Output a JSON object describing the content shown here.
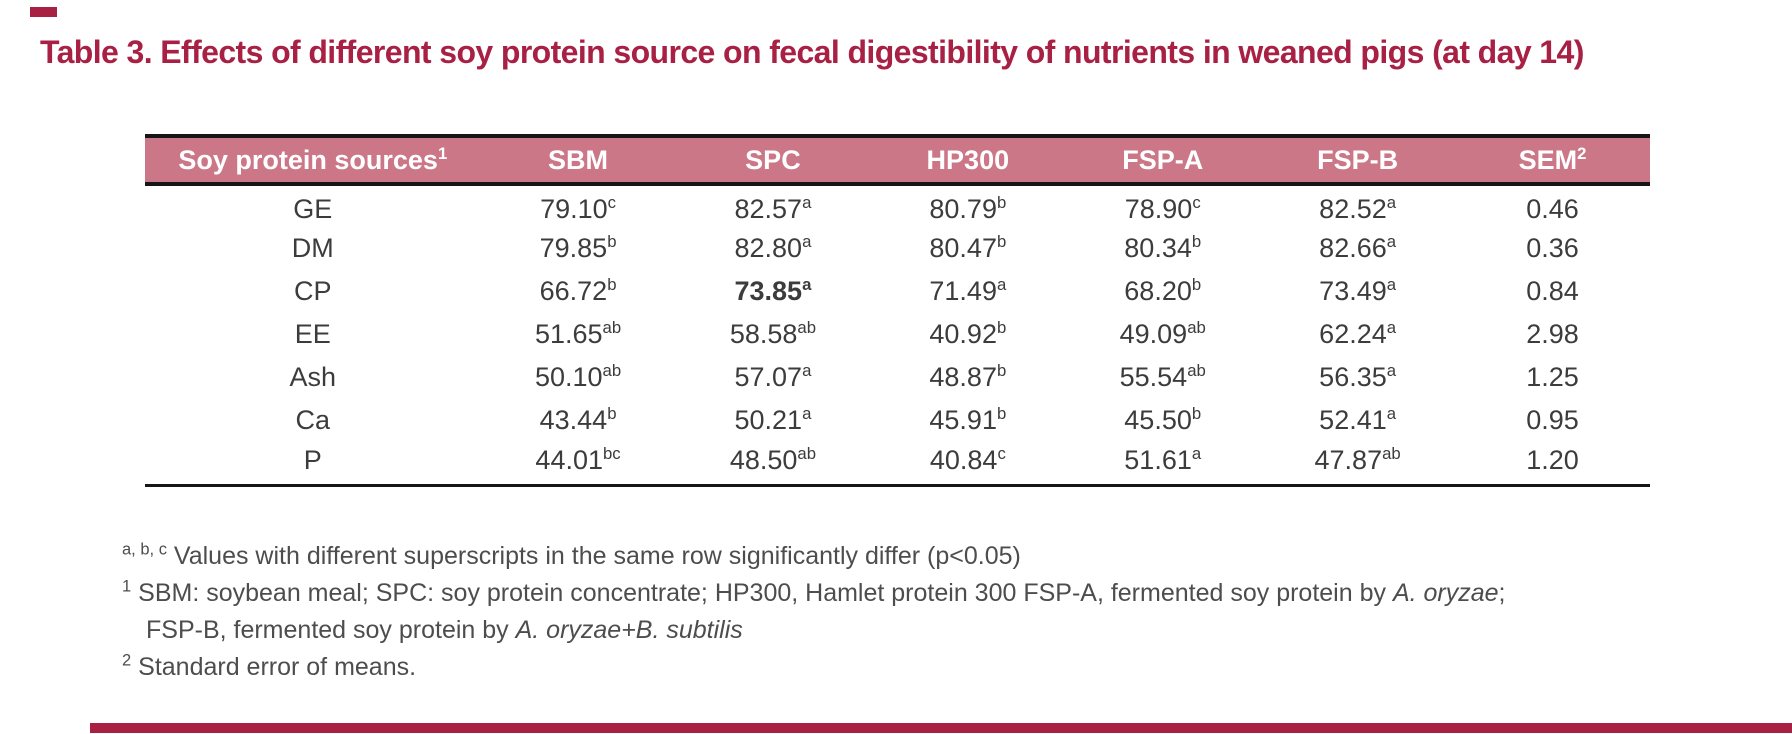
{
  "title": "Table 3. Effects of different soy protein source on fecal digestibility of nutrients in weaned pigs (at day 14)",
  "colors": {
    "accent": "#a82044",
    "header_bg": "#cc7788",
    "header_text": "#ffffff",
    "body_text": "#3c3c3c",
    "footnote_text": "#4d4d4d",
    "rule": "#161616"
  },
  "table": {
    "columns": [
      {
        "label": "Soy protein sources",
        "sup": "1"
      },
      {
        "label": "SBM",
        "sup": ""
      },
      {
        "label": "SPC",
        "sup": ""
      },
      {
        "label": "HP300",
        "sup": ""
      },
      {
        "label": "FSP-A",
        "sup": ""
      },
      {
        "label": "FSP-B",
        "sup": ""
      },
      {
        "label": "SEM",
        "sup": "2"
      }
    ],
    "rows": [
      {
        "label": "GE",
        "values": [
          {
            "v": "79.10",
            "s": "c"
          },
          {
            "v": "82.57",
            "s": "a"
          },
          {
            "v": "80.79",
            "s": "b"
          },
          {
            "v": "78.90",
            "s": "c"
          },
          {
            "v": "82.52",
            "s": "a"
          }
        ],
        "sem": "0.46"
      },
      {
        "label": "DM",
        "values": [
          {
            "v": "79.85",
            "s": "b"
          },
          {
            "v": "82.80",
            "s": "a"
          },
          {
            "v": "80.47",
            "s": "b"
          },
          {
            "v": "80.34",
            "s": "b"
          },
          {
            "v": "82.66",
            "s": "a"
          }
        ],
        "sem": "0.36"
      },
      {
        "label": "CP",
        "values": [
          {
            "v": "66.72",
            "s": "b"
          },
          {
            "v": "73.85",
            "s": "a",
            "bold": true
          },
          {
            "v": "71.49",
            "s": "a"
          },
          {
            "v": "68.20",
            "s": "b"
          },
          {
            "v": "73.49",
            "s": "a"
          }
        ],
        "sem": "0.84"
      },
      {
        "label": "EE",
        "values": [
          {
            "v": "51.65",
            "s": "ab"
          },
          {
            "v": "58.58",
            "s": "ab"
          },
          {
            "v": "40.92",
            "s": "b"
          },
          {
            "v": "49.09",
            "s": "ab"
          },
          {
            "v": "62.24",
            "s": "a"
          }
        ],
        "sem": "2.98"
      },
      {
        "label": "Ash",
        "values": [
          {
            "v": "50.10",
            "s": "ab"
          },
          {
            "v": "57.07",
            "s": "a"
          },
          {
            "v": "48.87",
            "s": "b"
          },
          {
            "v": "55.54",
            "s": "ab"
          },
          {
            "v": "56.35",
            "s": "a"
          }
        ],
        "sem": "1.25"
      },
      {
        "label": "Ca",
        "values": [
          {
            "v": "43.44",
            "s": "b"
          },
          {
            "v": "50.21",
            "s": "a"
          },
          {
            "v": "45.91",
            "s": "b"
          },
          {
            "v": "45.50",
            "s": "b"
          },
          {
            "v": "52.41",
            "s": "a"
          }
        ],
        "sem": "0.95"
      },
      {
        "label": "P",
        "values": [
          {
            "v": "44.01",
            "s": "bc"
          },
          {
            "v": "48.50",
            "s": "ab"
          },
          {
            "v": "40.84",
            "s": "c"
          },
          {
            "v": "51.61",
            "s": "a"
          },
          {
            "v": "47.87",
            "s": "ab"
          }
        ],
        "sem": "1.20"
      }
    ]
  },
  "footnotes": [
    {
      "sup": "a, b, c",
      "text": "Values with different superscripts in the same row significantly differ (p<0.05)",
      "italic": "",
      "tail": ""
    },
    {
      "sup": "1",
      "text": "SBM: soybean meal; SPC: soy protein concentrate; HP300, Hamlet protein 300 FSP-A, fermented soy protein by ",
      "italic": "A. oryzae",
      "tail": ";"
    },
    {
      "sup": "",
      "text": "FSP-B, fermented soy protein by ",
      "italic": "A. oryzae+B. subtilis",
      "tail": ""
    },
    {
      "sup": "2",
      "text": "Standard error of means.",
      "italic": "",
      "tail": ""
    }
  ]
}
